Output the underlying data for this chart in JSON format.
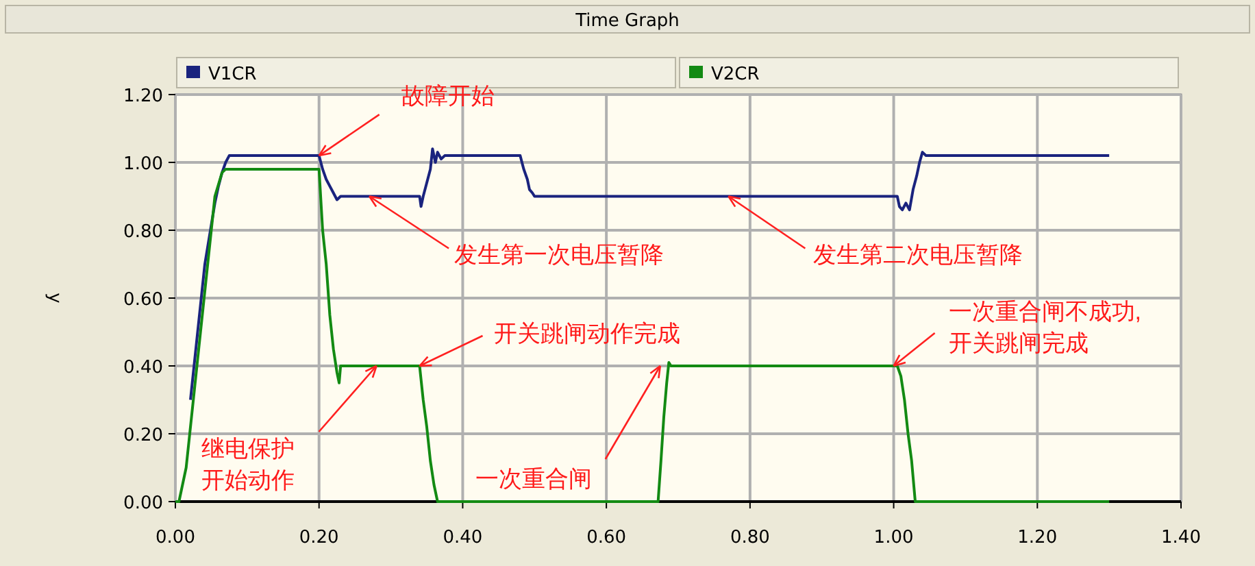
{
  "chart_data": {
    "type": "line",
    "title": "Time Graph",
    "ylabel": "y",
    "legend": "top",
    "grid": true,
    "marker": "none",
    "line_style": "solid",
    "xlim": [
      0,
      1.4
    ],
    "ylim": [
      0,
      1.2
    ],
    "xticks": [
      {
        "value": 0,
        "label": "0.00"
      },
      {
        "value": 0.2,
        "label": "0.20"
      },
      {
        "value": 0.4,
        "label": "0.40"
      },
      {
        "value": 0.6,
        "label": "0.60"
      },
      {
        "value": 0.8,
        "label": "0.80"
      },
      {
        "value": 1.0,
        "label": "1.00"
      },
      {
        "value": 1.2,
        "label": "1.20"
      },
      {
        "value": 1.4,
        "label": "1.40"
      }
    ],
    "yticks": [
      {
        "value": 0,
        "label": "0.00"
      },
      {
        "value": 0.2,
        "label": "0.20"
      },
      {
        "value": 0.4,
        "label": "0.40"
      },
      {
        "value": 0.6,
        "label": "0.60"
      },
      {
        "value": 0.8,
        "label": "0.80"
      },
      {
        "value": 1.0,
        "label": "1.00"
      },
      {
        "value": 1.2,
        "label": "1.20"
      }
    ],
    "series": [
      {
        "name": "V1CR",
        "color": "#1a237e",
        "x": [
          0.021,
          0.031,
          0.041,
          0.055,
          0.06,
          0.065,
          0.07,
          0.075,
          0.2,
          0.205,
          0.21,
          0.215,
          0.22,
          0.225,
          0.23,
          0.34,
          0.342,
          0.345,
          0.35,
          0.355,
          0.358,
          0.362,
          0.365,
          0.37,
          0.375,
          0.48,
          0.485,
          0.49,
          0.493,
          0.497,
          0.5,
          1.005,
          1.008,
          1.012,
          1.017,
          1.022,
          1.027,
          1.032,
          1.036,
          1.04,
          1.045,
          1.3
        ],
        "values": [
          0.3,
          0.5,
          0.7,
          0.88,
          0.93,
          0.97,
          1.0,
          1.02,
          1.02,
          0.98,
          0.95,
          0.93,
          0.91,
          0.89,
          0.9,
          0.9,
          0.87,
          0.9,
          0.94,
          0.98,
          1.04,
          1.0,
          1.03,
          1.01,
          1.02,
          1.02,
          0.98,
          0.95,
          0.92,
          0.91,
          0.9,
          0.9,
          0.87,
          0.86,
          0.88,
          0.86,
          0.92,
          0.96,
          1.0,
          1.03,
          1.02,
          1.02
        ]
      },
      {
        "name": "V2CR",
        "color": "#138a13",
        "x": [
          0,
          0.005,
          0.015,
          0.025,
          0.035,
          0.045,
          0.055,
          0.065,
          0.07,
          0.2,
          0.205,
          0.21,
          0.215,
          0.22,
          0.225,
          0.228,
          0.23,
          0.232,
          0.34,
          0.345,
          0.35,
          0.355,
          0.36,
          0.365,
          0.672,
          0.676,
          0.68,
          0.684,
          0.687,
          0.69,
          0.693,
          1.005,
          1.01,
          1.015,
          1.02,
          1.025,
          1.03,
          1.3
        ],
        "values": [
          0,
          0,
          0.1,
          0.3,
          0.5,
          0.7,
          0.9,
          0.97,
          0.98,
          0.98,
          0.8,
          0.7,
          0.55,
          0.45,
          0.38,
          0.35,
          0.4,
          0.4,
          0.4,
          0.3,
          0.22,
          0.12,
          0.05,
          0,
          0,
          0.12,
          0.25,
          0.35,
          0.41,
          0.4,
          0.4,
          0.4,
          0.37,
          0.3,
          0.2,
          0.12,
          0,
          0
        ]
      }
    ],
    "annotations": [
      {
        "text": "故障开始",
        "x": 0.2,
        "y": 1.02
      },
      {
        "text": "发生第一次电压暂降",
        "x": 0.27,
        "y": 0.9
      },
      {
        "text": "开关跳闸动作完成",
        "x": 0.34,
        "y": 0.4
      },
      {
        "text": "继电保护开始动作",
        "x": 0.28,
        "y": 0.4
      },
      {
        "text": "一次重合闸",
        "x": 0.675,
        "y": 0.4
      },
      {
        "text": "发生第二次电压暂降",
        "x": 0.77,
        "y": 0.9
      },
      {
        "text": "一次重合闸不成功,\n开关跳闸完成",
        "x": 1.0,
        "y": 0.4
      }
    ]
  }
}
